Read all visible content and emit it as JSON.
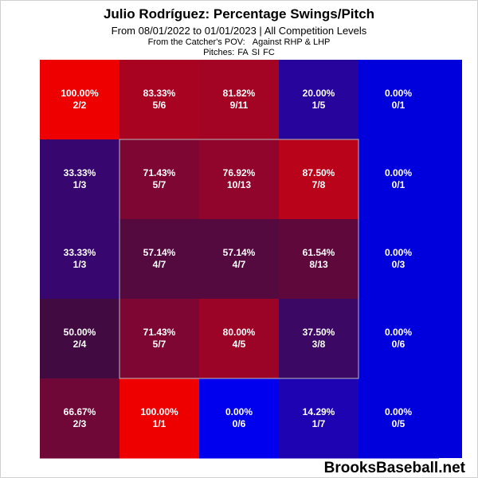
{
  "title": "Julio Rodríguez: Percentage Swings/Pitch",
  "subtitle": "From 08/01/2022 to 01/01/2023 | All Competition Levels",
  "pov_note": {
    "perspective": "From the Catcher's POV:",
    "handedness": "Against RHP & LHP"
  },
  "pitches": {
    "label": "Pitches:",
    "types": [
      "FA",
      "SI",
      "FC"
    ]
  },
  "watermark": "BrooksBaseball.net",
  "chart_data": {
    "type": "heatmap",
    "title": "Julio Rodríguez: Percentage Swings/Pitch",
    "rows": 5,
    "cols": 5,
    "strike_zone": {
      "row_start": 1,
      "row_end": 3,
      "col_start": 1,
      "col_end": 3
    },
    "colors": {
      "low": "#0000ee",
      "high": "#ee0000",
      "empty_column": "#0000dd"
    },
    "cells": [
      [
        {
          "pct": 100.0,
          "label_pct": "100.00%",
          "label_frac": "2/2"
        },
        {
          "pct": 83.33,
          "label_pct": "83.33%",
          "label_frac": "5/6"
        },
        {
          "pct": 81.82,
          "label_pct": "81.82%",
          "label_frac": "9/11"
        },
        {
          "pct": 20.0,
          "label_pct": "20.00%",
          "label_frac": "1/5"
        },
        {
          "pct": 0.0,
          "label_pct": "0.00%",
          "label_frac": "0/1"
        }
      ],
      [
        {
          "pct": 33.33,
          "label_pct": "33.33%",
          "label_frac": "1/3"
        },
        {
          "pct": 71.43,
          "label_pct": "71.43%",
          "label_frac": "5/7"
        },
        {
          "pct": 76.92,
          "label_pct": "76.92%",
          "label_frac": "10/13"
        },
        {
          "pct": 87.5,
          "label_pct": "87.50%",
          "label_frac": "7/8"
        },
        {
          "pct": 0.0,
          "label_pct": "0.00%",
          "label_frac": "0/1"
        }
      ],
      [
        {
          "pct": 33.33,
          "label_pct": "33.33%",
          "label_frac": "1/3"
        },
        {
          "pct": 57.14,
          "label_pct": "57.14%",
          "label_frac": "4/7"
        },
        {
          "pct": 57.14,
          "label_pct": "57.14%",
          "label_frac": "4/7"
        },
        {
          "pct": 61.54,
          "label_pct": "61.54%",
          "label_frac": "8/13"
        },
        {
          "pct": 0.0,
          "label_pct": "0.00%",
          "label_frac": "0/3"
        }
      ],
      [
        {
          "pct": 50.0,
          "label_pct": "50.00%",
          "label_frac": "2/4"
        },
        {
          "pct": 71.43,
          "label_pct": "71.43%",
          "label_frac": "5/7"
        },
        {
          "pct": 80.0,
          "label_pct": "80.00%",
          "label_frac": "4/5"
        },
        {
          "pct": 37.5,
          "label_pct": "37.50%",
          "label_frac": "3/8"
        },
        {
          "pct": 0.0,
          "label_pct": "0.00%",
          "label_frac": "0/6"
        }
      ],
      [
        {
          "pct": 66.67,
          "label_pct": "66.67%",
          "label_frac": "2/3"
        },
        {
          "pct": 100.0,
          "label_pct": "100.00%",
          "label_frac": "1/1"
        },
        {
          "pct": 0.0,
          "label_pct": "0.00%",
          "label_frac": "0/6"
        },
        {
          "pct": 14.29,
          "label_pct": "14.29%",
          "label_frac": "1/7"
        },
        {
          "pct": 0.0,
          "label_pct": "0.00%",
          "label_frac": "0/5"
        }
      ]
    ]
  }
}
